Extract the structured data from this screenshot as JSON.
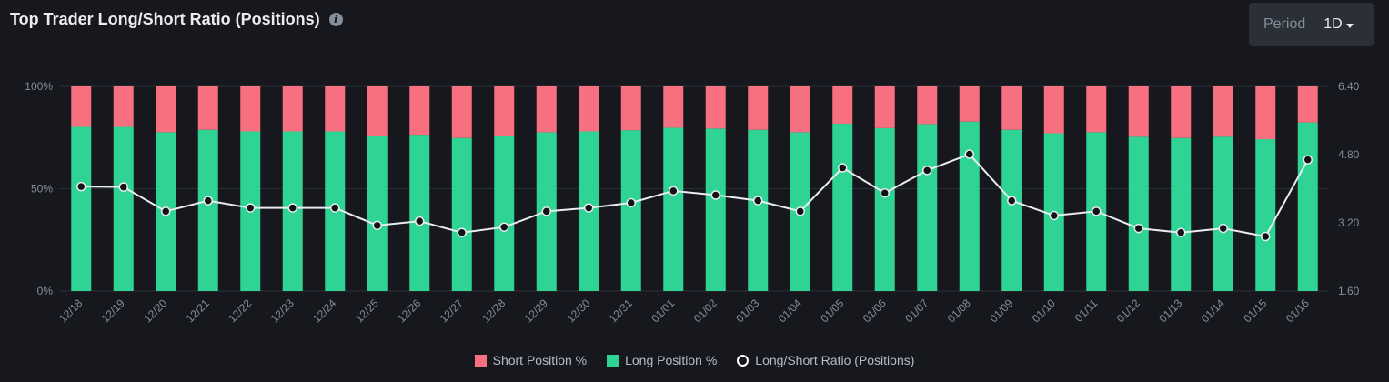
{
  "header": {
    "title": "Top Trader Long/Short Ratio (Positions)",
    "info_icon": "info-icon"
  },
  "period": {
    "label": "Period",
    "value": "1D",
    "icon": "chevron-down-icon"
  },
  "colors": {
    "short": "#f6707f",
    "long": "#2fd494",
    "ratio": "#eaecef",
    "grid": "#2b2f36",
    "axis_text": "#848e9c"
  },
  "chart_data": {
    "type": "bar",
    "stacked": true,
    "categories": [
      "12/18",
      "12/19",
      "12/20",
      "12/21",
      "12/22",
      "12/23",
      "12/24",
      "12/25",
      "12/26",
      "12/27",
      "12/28",
      "12/29",
      "12/30",
      "12/31",
      "01/01",
      "01/02",
      "01/03",
      "01/04",
      "01/05",
      "01/06",
      "01/07",
      "01/08",
      "01/09",
      "01/10",
      "01/11",
      "01/12",
      "01/13",
      "01/14",
      "01/15",
      "01/16"
    ],
    "series": [
      {
        "name": "Short Position %",
        "axis": "left",
        "values": [
          19.8,
          19.8,
          22.4,
          21.2,
          22.0,
          22.0,
          22.0,
          24.2,
          23.6,
          25.2,
          24.4,
          22.4,
          22.0,
          21.4,
          20.2,
          20.6,
          21.2,
          22.4,
          18.2,
          20.4,
          18.4,
          17.2,
          21.2,
          22.9,
          22.4,
          24.6,
          25.2,
          24.6,
          25.8,
          17.6
        ]
      },
      {
        "name": "Long Position %",
        "axis": "left",
        "values": [
          80.2,
          80.2,
          77.6,
          78.8,
          78.0,
          78.0,
          78.0,
          75.8,
          76.4,
          74.8,
          75.6,
          77.6,
          78.0,
          78.6,
          79.8,
          79.4,
          78.8,
          77.6,
          81.8,
          79.6,
          81.6,
          82.8,
          78.8,
          77.1,
          77.6,
          75.4,
          74.8,
          75.4,
          74.2,
          82.4
        ]
      },
      {
        "name": "Long/Short Ratio (Positions)",
        "type": "line",
        "axis": "right",
        "values": [
          4.05,
          4.04,
          3.47,
          3.72,
          3.55,
          3.55,
          3.55,
          3.14,
          3.24,
          2.97,
          3.1,
          3.47,
          3.55,
          3.67,
          3.95,
          3.85,
          3.72,
          3.47,
          4.49,
          3.9,
          4.43,
          4.81,
          3.72,
          3.37,
          3.47,
          3.07,
          2.97,
          3.07,
          2.88,
          4.68
        ]
      }
    ],
    "y_left": {
      "ticks": [
        "100%",
        "50%",
        "0%"
      ],
      "range": [
        0,
        100
      ]
    },
    "y_right": {
      "ticks": [
        "6.40",
        "4.80",
        "3.20",
        "1.60"
      ],
      "range": [
        1.6,
        6.4
      ]
    },
    "grid": true,
    "legend_position": "bottom-center"
  }
}
